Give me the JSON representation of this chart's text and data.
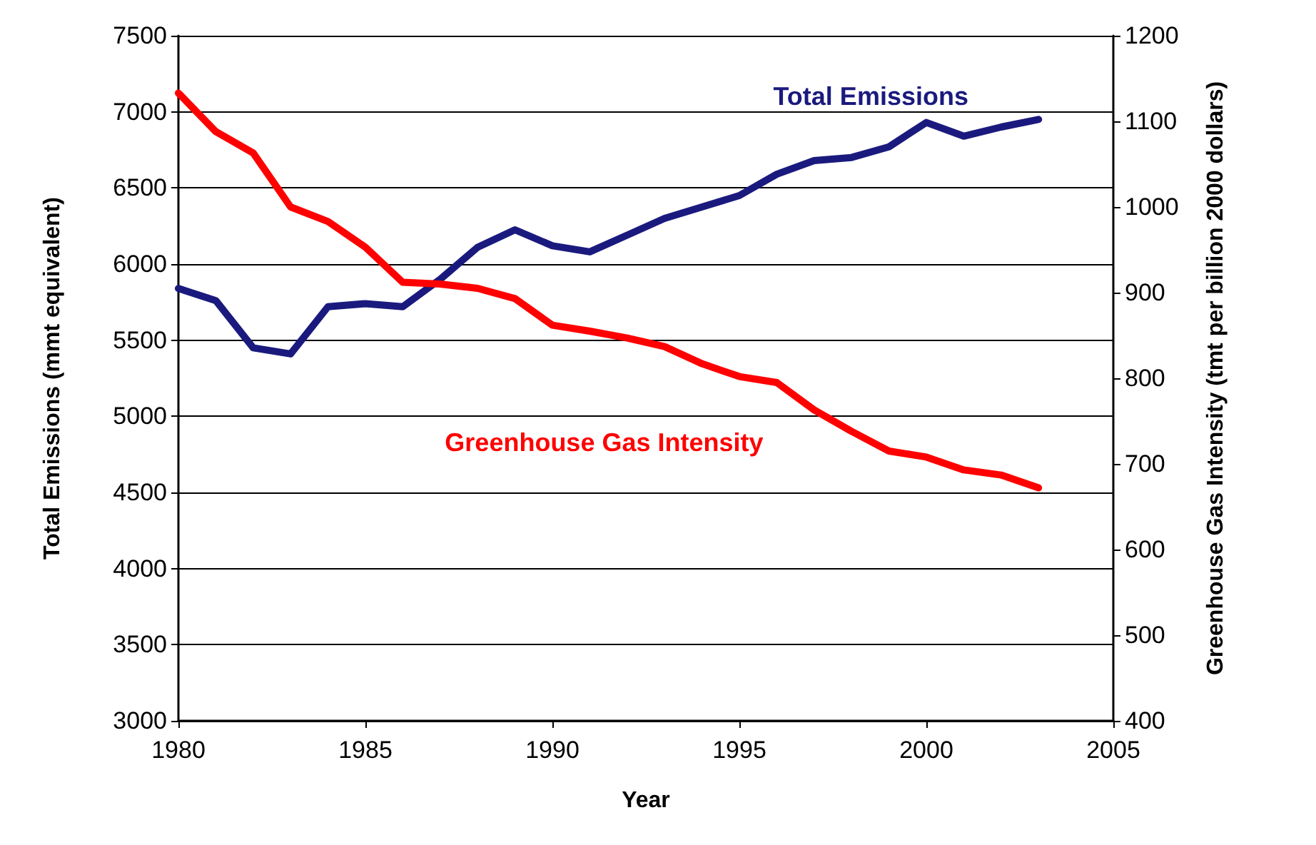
{
  "chart_data": {
    "type": "line",
    "xlabel": "Year",
    "ylabel": "Total Emissions (mmt equivalent)",
    "y2label": "Greenhouse Gas Intensity (tmt per billion 2000 dollars)",
    "x": [
      1980,
      1981,
      1982,
      1983,
      1984,
      1985,
      1986,
      1987,
      1988,
      1989,
      1990,
      1991,
      1992,
      1993,
      1994,
      1995,
      1996,
      1997,
      1998,
      1999,
      2000,
      2001,
      2002,
      2003
    ],
    "series": [
      {
        "name": "Total Emissions",
        "color": "#1a1a7e",
        "values": [
          5840,
          5760,
          5450,
          5410,
          5720,
          5740,
          5720,
          5900,
          6110,
          6225,
          6120,
          6080,
          6190,
          6300,
          6375,
          6450,
          6590,
          6680,
          6700,
          6770,
          6930,
          6840,
          6900,
          6950
        ]
      },
      {
        "name": "Greenhouse Gas Intensity",
        "color": "#ff0000",
        "axis": "y2",
        "values": [
          1133,
          1088,
          1063,
          1000,
          983,
          953,
          912,
          910,
          905,
          893,
          862,
          855,
          847,
          837,
          817,
          802,
          795,
          763,
          738,
          715,
          708,
          693,
          687,
          672
        ]
      }
    ],
    "xlim": [
      1980,
      2005
    ],
    "xticks": [
      1980,
      1985,
      1990,
      1995,
      2000,
      2005
    ],
    "ylim": [
      3000,
      7500
    ],
    "yticks": [
      3000,
      3500,
      4000,
      4500,
      5000,
      5500,
      6000,
      6500,
      7000,
      7500
    ],
    "y2lim": [
      400,
      1200
    ],
    "y2ticks": [
      400,
      500,
      600,
      700,
      800,
      900,
      1000,
      1100,
      1200
    ],
    "grid": "y",
    "legend": false,
    "marker": "none",
    "line_style": "solid"
  }
}
